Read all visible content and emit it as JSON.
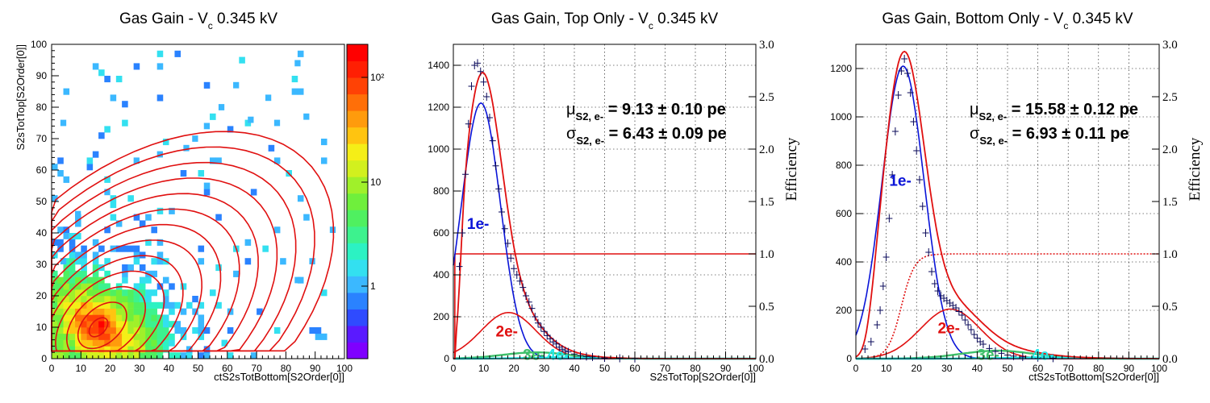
{
  "chart_data": [
    {
      "type": "heatmap",
      "title_main": "Gas Gain - V",
      "title_sub": "c",
      "title_rest": " 0.345 kV",
      "xlabel": "ctS2sTotBottom[S2Order[0]]",
      "ylabel": "S2sTotTop[S2Order[0]]",
      "xlim": [
        0,
        100
      ],
      "ylim": [
        0,
        100
      ],
      "xticks": [
        "0",
        "10",
        "20",
        "30",
        "40",
        "50",
        "60",
        "70",
        "80",
        "90",
        "100"
      ],
      "yticks": [
        "0",
        "10",
        "20",
        "30",
        "40",
        "50",
        "60",
        "70",
        "80",
        "90",
        "100"
      ],
      "colorbar_labels": [
        "1",
        "10",
        "10²"
      ],
      "colorbar_log": true,
      "colors": [
        "#7f00ff",
        "#5a1aff",
        "#2f4bff",
        "#2a82ff",
        "#3bb8ff",
        "#33e0f0",
        "#2cf2c3",
        "#3df28e",
        "#4ff060",
        "#6fef3c",
        "#a0f02a",
        "#d2f01e",
        "#f5ee17",
        "#ffc410",
        "#ff9b0c",
        "#ff6f08",
        "#ff4205",
        "#ff1f03",
        "#ff0000"
      ],
      "peak": [
        16,
        10
      ],
      "contour_color": "#e01010"
    },
    {
      "type": "line",
      "title_main": "Gas Gain, Top Only - V",
      "title_sub": "c",
      "title_rest": " 0.345 kV",
      "xlabel": "S2sTotTop[S2Order[0]]",
      "ylabel_right": "Efficiency",
      "xlim": [
        0,
        100
      ],
      "ylim": [
        0,
        1500
      ],
      "y2lim": [
        0,
        3
      ],
      "xticks": [
        "0",
        "10",
        "20",
        "30",
        "40",
        "50",
        "60",
        "70",
        "80",
        "90",
        "100"
      ],
      "yticks": [
        "0",
        "200",
        "400",
        "600",
        "800",
        "1000",
        "1200",
        "1400"
      ],
      "y2ticks": [
        "0.0",
        "0.5",
        "1.0",
        "1.5",
        "2.0",
        "2.5",
        "3.0"
      ],
      "mu": {
        "sym": "μ",
        "sub": "S2, e-",
        "text": "= 9.13 ± 0.10 pe"
      },
      "sigma": {
        "sym": "σ",
        "sub": "S2, e-",
        "text": "= 6.43 ± 0.09 pe"
      },
      "efficiency_level": 1.0,
      "efficiency_dashed": false,
      "series": [
        {
          "name": "1e-",
          "color": "#0a14d8",
          "mu": 9.13,
          "sigma": 6.43,
          "amp": 1220
        },
        {
          "name": "2e-",
          "color": "#e01010",
          "mu": 18.26,
          "sigma": 9.09,
          "amp": 220
        },
        {
          "name": "3e-",
          "color": "#3ec06a",
          "mu": 27.4,
          "sigma": 11.1,
          "amp": 30
        },
        {
          "name": "4e-",
          "color": "#22e8e8",
          "mu": 36.5,
          "sigma": 12.9,
          "amp": 5
        }
      ],
      "total_color": "#e01010",
      "labels": [
        {
          "text": "1e-",
          "color": "#0a14d8",
          "x": 4.5,
          "y": 620
        },
        {
          "text": "2e-",
          "color": "#e01010",
          "x": 14,
          "y": 105
        },
        {
          "text": "3e-",
          "color": "#3ec06a",
          "x": 23,
          "y": -5
        },
        {
          "text": "4e-",
          "color": "#22e8e8",
          "x": 31,
          "y": -5
        }
      ],
      "points": [
        [
          2,
          440
        ],
        [
          3,
          600
        ],
        [
          4,
          880
        ],
        [
          5,
          1120
        ],
        [
          6,
          1300
        ],
        [
          7,
          1400
        ],
        [
          8,
          1410
        ],
        [
          9,
          1370
        ],
        [
          10,
          1320
        ],
        [
          11,
          1250
        ],
        [
          12,
          1150
        ],
        [
          13,
          1040
        ],
        [
          14,
          920
        ],
        [
          15,
          810
        ],
        [
          16,
          700
        ],
        [
          17,
          620
        ],
        [
          18,
          550
        ],
        [
          19,
          480
        ],
        [
          20,
          430
        ],
        [
          21,
          400
        ],
        [
          22,
          370
        ],
        [
          23,
          340
        ],
        [
          24,
          300
        ],
        [
          25,
          270
        ],
        [
          26,
          240
        ],
        [
          27,
          200
        ],
        [
          28,
          170
        ],
        [
          29,
          150
        ],
        [
          30,
          130
        ],
        [
          31,
          110
        ],
        [
          32,
          95
        ],
        [
          33,
          80
        ],
        [
          34,
          70
        ],
        [
          35,
          55
        ],
        [
          36,
          45
        ],
        [
          37,
          38
        ],
        [
          38,
          32
        ],
        [
          40,
          22
        ],
        [
          42,
          15
        ],
        [
          44,
          10
        ],
        [
          46,
          8
        ],
        [
          50,
          4
        ],
        [
          55,
          2
        ],
        [
          60,
          1
        ]
      ]
    },
    {
      "type": "line",
      "title_main": "Gas Gain, Bottom Only - V",
      "title_sub": "c",
      "title_rest": " 0.345 kV",
      "xlabel": "ctS2sTotBottom[S2Order[0]]",
      "ylabel_right": "Efficiency",
      "xlim": [
        0,
        100
      ],
      "ylim": [
        0,
        1300
      ],
      "y2lim": [
        0,
        3
      ],
      "xticks": [
        "0",
        "10",
        "20",
        "30",
        "40",
        "50",
        "60",
        "70",
        "80",
        "90",
        "100"
      ],
      "yticks": [
        "0",
        "200",
        "400",
        "600",
        "800",
        "1000",
        "1200"
      ],
      "y2ticks": [
        "0.0",
        "0.5",
        "1.0",
        "1.5",
        "2.0",
        "2.5",
        "3.0"
      ],
      "mu": {
        "sym": "μ",
        "sub": "S2, e-",
        "text": "= 15.58 ± 0.12 pe"
      },
      "sigma": {
        "sym": "σ",
        "sub": "S2, e-",
        "text": "= 6.93 ± 0.11 pe"
      },
      "efficiency_level": 1.0,
      "efficiency_dashed": true,
      "series": [
        {
          "name": "1e-",
          "color": "#0a14d8",
          "mu": 15.58,
          "sigma": 6.93,
          "amp": 1210
        },
        {
          "name": "2e-",
          "color": "#e01010",
          "mu": 31.16,
          "sigma": 9.8,
          "amp": 205
        },
        {
          "name": "3e-",
          "color": "#3ec06a",
          "mu": 46.7,
          "sigma": 12.0,
          "amp": 33
        },
        {
          "name": "4e-",
          "color": "#22e8e8",
          "mu": 62.3,
          "sigma": 13.9,
          "amp": 5
        }
      ],
      "total_color": "#e01010",
      "labels": [
        {
          "text": "1e-",
          "color": "#0a14d8",
          "x": 11,
          "y": 715
        },
        {
          "text": "2e-",
          "color": "#e01010",
          "x": 27,
          "y": 105
        },
        {
          "text": "3e-",
          "color": "#3ec06a",
          "x": 40,
          "y": -5
        },
        {
          "text": "4e-",
          "color": "#22e8e8",
          "x": 58,
          "y": -5
        }
      ],
      "points": [
        [
          3,
          40
        ],
        [
          5,
          70
        ],
        [
          7,
          140
        ],
        [
          8,
          200
        ],
        [
          9,
          300
        ],
        [
          10,
          420
        ],
        [
          11,
          580
        ],
        [
          12,
          760
        ],
        [
          13,
          940
        ],
        [
          14,
          1090
        ],
        [
          15,
          1190
        ],
        [
          16,
          1240
        ],
        [
          17,
          1180
        ],
        [
          18,
          1100
        ],
        [
          19,
          980
        ],
        [
          20,
          860
        ],
        [
          21,
          740
        ],
        [
          22,
          630
        ],
        [
          23,
          520
        ],
        [
          24,
          440
        ],
        [
          25,
          360
        ],
        [
          26,
          310
        ],
        [
          27,
          280
        ],
        [
          28,
          260
        ],
        [
          29,
          250
        ],
        [
          30,
          240
        ],
        [
          31,
          230
        ],
        [
          32,
          220
        ],
        [
          33,
          210
        ],
        [
          34,
          195
        ],
        [
          35,
          180
        ],
        [
          36,
          160
        ],
        [
          37,
          140
        ],
        [
          38,
          120
        ],
        [
          39,
          100
        ],
        [
          40,
          85
        ],
        [
          41,
          70
        ],
        [
          42,
          60
        ],
        [
          44,
          42
        ],
        [
          46,
          30
        ],
        [
          48,
          22
        ],
        [
          50,
          15
        ],
        [
          52,
          11
        ],
        [
          55,
          7
        ],
        [
          60,
          4
        ],
        [
          65,
          2
        ]
      ]
    }
  ]
}
